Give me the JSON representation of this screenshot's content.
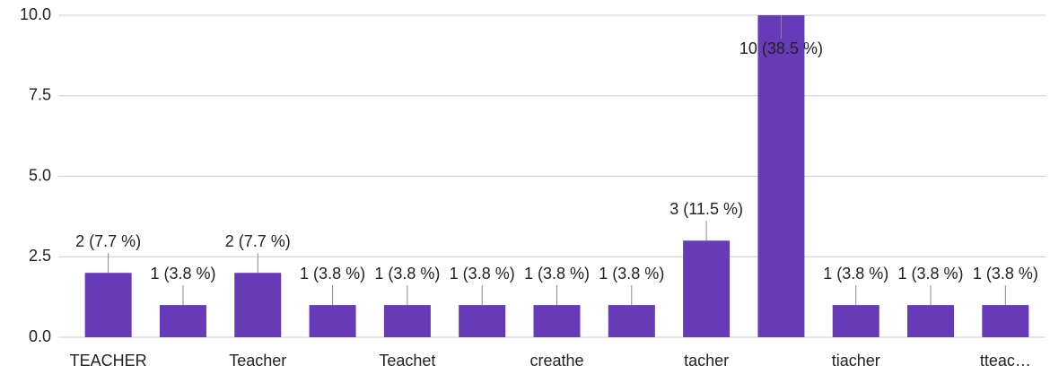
{
  "chart_data": {
    "type": "bar",
    "categories": [
      "TEACHER",
      null,
      "Teacher",
      null,
      "Teachet",
      null,
      "creathe",
      null,
      "tacher",
      null,
      "tiacher",
      null,
      "tteac…"
    ],
    "values": [
      2,
      1,
      2,
      1,
      1,
      1,
      1,
      1,
      3,
      10,
      1,
      1,
      1
    ],
    "value_labels": [
      "2 (7.7 %)",
      "1 (3.8 %)",
      "2 (7.7 %)",
      "1 (3.8 %)",
      "1 (3.8 %)",
      "1 (3.8 %)",
      "1 (3.8 %)",
      "1 (3.8 %)",
      "3 (11.5 %)",
      "10 (38.5 %)",
      "1 (3.8 %)",
      "1 (3.8 %)",
      "1 (3.8 %)"
    ],
    "color": "#673ab7",
    "ylim": [
      0,
      10
    ],
    "yticks": [
      {
        "value": 0,
        "label": "0.0"
      },
      2.5,
      {
        "value": 5,
        "label": "5.0"
      },
      7.5,
      {
        "value": 10,
        "label": "10.0"
      }
    ],
    "grid": true
  }
}
